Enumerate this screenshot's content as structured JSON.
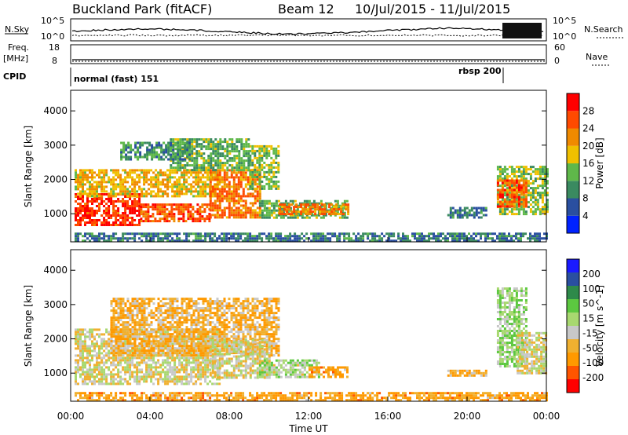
{
  "header": {
    "station": "Buckland Park (fitACF)",
    "beam": "Beam 12",
    "dates": "10/Jul/2015 - 11/Jul/2015"
  },
  "panels": {
    "nsky_label": "N.Sky",
    "nsky_ticks": [
      "10^5",
      "10^0"
    ],
    "nsearch_label": "N.Search",
    "nsearch_ticks": [
      "10^5",
      "10^0"
    ],
    "freq_label_line1": "Freq.",
    "freq_label_line2": "[MHz]",
    "freq_ticks": [
      "18",
      "8"
    ],
    "nave_label": "Nave",
    "nave_ticks": [
      "60",
      "0"
    ],
    "cpid_label": "CPID",
    "cpid_modes": [
      {
        "name": "normal (fast) 151",
        "start_hour": 0
      },
      {
        "name": "rbsp 200",
        "start_hour": 21.8
      }
    ]
  },
  "colorbars": {
    "power": {
      "label": "Power [dB]",
      "ticks": [
        "28",
        "24",
        "20",
        "16",
        "12",
        "8",
        "4"
      ],
      "colors": [
        "#0022ff",
        "#2a4fa0",
        "#3a8a60",
        "#5fb84a",
        "#f0c000",
        "#f08a00",
        "#ff4a00",
        "#ff0000"
      ]
    },
    "velocity": {
      "label": "Velocity [m s^-1]",
      "ticks": [
        "200",
        "100",
        "50",
        "15",
        "-15",
        "-50",
        "-100",
        "-200"
      ],
      "colors": [
        "#ff0000",
        "#ff5500",
        "#ff9900",
        "#f0b030",
        "#c8c8c8",
        "#a8d870",
        "#5cc840",
        "#2e8a4a",
        "#2a4fa0",
        "#1a1aff"
      ]
    }
  },
  "axes": {
    "ylabel": "Slant Range [km]",
    "xlabel": "Time UT",
    "yticks": [
      "4000",
      "3000",
      "2000",
      "1000"
    ],
    "xticks": [
      "00:00",
      "04:00",
      "08:00",
      "12:00",
      "16:00",
      "20:00",
      "00:00"
    ]
  },
  "chart_data": [
    {
      "type": "heatmap",
      "title": "",
      "quantity": "Power",
      "unit": "dB",
      "xlabel": "Time UT",
      "ylabel": "Slant Range [km]",
      "xlim_hours": [
        0,
        24
      ],
      "ylim_km": [
        180,
        4600
      ],
      "clim": [
        0,
        30
      ],
      "echo_regions": [
        {
          "t0": 0.2,
          "t1": 3.5,
          "r0": 700,
          "r1": 1600,
          "value": 26
        },
        {
          "t0": 3.5,
          "t1": 7.0,
          "r0": 800,
          "r1": 1300,
          "value": 24
        },
        {
          "t0": 0.2,
          "t1": 7.5,
          "r0": 1500,
          "r1": 2300,
          "value": 18
        },
        {
          "t0": 7.0,
          "t1": 9.5,
          "r0": 900,
          "r1": 2300,
          "value": 22
        },
        {
          "t0": 9.0,
          "t1": 10.5,
          "r0": 1700,
          "r1": 3000,
          "value": 14
        },
        {
          "t0": 5.0,
          "t1": 9.0,
          "r0": 2300,
          "r1": 3200,
          "value": 12
        },
        {
          "t0": 2.5,
          "t1": 6.0,
          "r0": 2600,
          "r1": 3100,
          "value": 10
        },
        {
          "t0": 9.5,
          "t1": 14.0,
          "r0": 900,
          "r1": 1400,
          "value": 12
        },
        {
          "t0": 10.5,
          "t1": 14.0,
          "r0": 1000,
          "r1": 1300,
          "value": 22
        },
        {
          "t0": 0.2,
          "t1": 24.0,
          "r0": 200,
          "r1": 450,
          "value": 8
        },
        {
          "t0": 21.5,
          "t1": 24.0,
          "r0": 1000,
          "r1": 2400,
          "value": 14
        },
        {
          "t0": 21.5,
          "t1": 23.0,
          "r0": 1200,
          "r1": 2000,
          "value": 24
        },
        {
          "t0": 19.0,
          "t1": 21.0,
          "r0": 900,
          "r1": 1200,
          "value": 8
        }
      ]
    },
    {
      "type": "heatmap",
      "title": "",
      "quantity": "Velocity",
      "unit": "m s^-1",
      "xlabel": "Time UT",
      "ylabel": "Slant Range [km]",
      "xlim_hours": [
        0,
        24
      ],
      "ylim_km": [
        180,
        4600
      ],
      "clim": [
        -250,
        250
      ],
      "echo_regions": [
        {
          "t0": 0.2,
          "t1": 7.5,
          "r0": 700,
          "r1": 2300,
          "value": 0
        },
        {
          "t0": 2.0,
          "t1": 10.5,
          "r0": 1500,
          "r1": 3200,
          "value": -40
        },
        {
          "t0": 7.0,
          "t1": 10.0,
          "r0": 900,
          "r1": 2000,
          "value": 0
        },
        {
          "t0": 9.5,
          "t1": 12.5,
          "r0": 900,
          "r1": 1400,
          "value": 30
        },
        {
          "t0": 12.0,
          "t1": 14.0,
          "r0": 900,
          "r1": 1200,
          "value": -60
        },
        {
          "t0": 0.2,
          "t1": 24.0,
          "r0": 200,
          "r1": 450,
          "value": -60
        },
        {
          "t0": 21.5,
          "t1": 23.0,
          "r0": 1200,
          "r1": 3500,
          "value": 40
        },
        {
          "t0": 22.5,
          "t1": 24.0,
          "r0": 1000,
          "r1": 2200,
          "value": 0
        },
        {
          "t0": 19.0,
          "t1": 21.0,
          "r0": 900,
          "r1": 1100,
          "value": -50
        }
      ]
    }
  ]
}
